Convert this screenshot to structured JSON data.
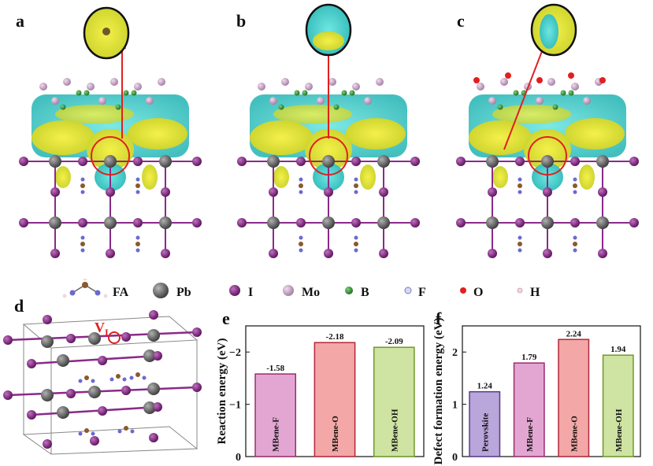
{
  "panels": {
    "a": "a",
    "b": "b",
    "c": "c",
    "d": "d",
    "e": "e",
    "f": "f"
  },
  "legend": {
    "items": [
      "FA",
      "Pb",
      "I",
      "Mo",
      "B",
      "F",
      "O",
      "H"
    ],
    "colors": {
      "Pb": "#6b6b6b",
      "I": "#8a2a8a",
      "Mo": "#c8a0c8",
      "B": "#3a9a3a",
      "F": "#b9b9e6",
      "O": "#e02020",
      "H": "#f2d8e0"
    }
  },
  "vacancy_label": {
    "main": "V",
    "sub": "I"
  },
  "chart_data": [
    {
      "type": "bar",
      "panel": "e",
      "categories": [
        "MBene-F",
        "MBene-O",
        "MBene-OH"
      ],
      "values": [
        -1.58,
        -2.18,
        -2.09
      ],
      "value_labels": [
        "-1.58",
        "-2.18",
        "-2.09"
      ],
      "ylabel": "Reaction energy (eV)",
      "ylim": [
        0,
        -2.5
      ],
      "yticks": [
        0,
        -1,
        -2
      ],
      "ytick_labels": [
        "0",
        "−1",
        "−2"
      ],
      "colors": [
        "#e3a6d3",
        "#f3a7a7",
        "#cfe3a2"
      ],
      "edge_colors": [
        "#9b2c6e",
        "#b3263a",
        "#6f9a2a"
      ]
    },
    {
      "type": "bar",
      "panel": "f",
      "categories": [
        "Perovskite",
        "MBene-F",
        "MBene-O",
        "MBene-OH"
      ],
      "values": [
        1.24,
        1.79,
        2.24,
        1.94
      ],
      "value_labels": [
        "1.24",
        "1.79",
        "2.24",
        "1.94"
      ],
      "ylabel": "Defect formation energy (eV)",
      "ylim": [
        0,
        2.5
      ],
      "yticks": [
        0,
        1,
        2
      ],
      "ytick_labels": [
        "0",
        "1",
        "2"
      ],
      "colors": [
        "#b9a6da",
        "#e3a6d3",
        "#f3a7a7",
        "#cfe3a2"
      ],
      "edge_colors": [
        "#5a3a8a",
        "#9b2c6e",
        "#b3263a",
        "#6f9a2a"
      ]
    }
  ]
}
